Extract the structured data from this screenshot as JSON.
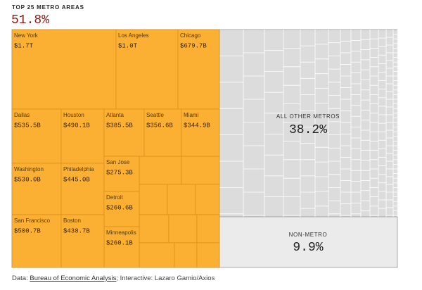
{
  "chart_data": {
    "type": "treemap",
    "group_names": [
      "TOP 25 METRO AREAS",
      "ALL OTHER METROS",
      "NON-METRO"
    ],
    "group_values": [
      51.8,
      38.2,
      9.9
    ],
    "group_value_labels": [
      "51.8%",
      "38.2%",
      "9.9%"
    ],
    "group_colors": [
      "#fbb034",
      "#dcdcdc",
      "#ebebeb"
    ],
    "categories": [
      "New York",
      "Los Angeles",
      "Chicago",
      "Dallas",
      "Houston",
      "Atlanta",
      "Seattle",
      "Miami",
      "Washington",
      "Philadelphia",
      "San Jose",
      "Detroit",
      "Minneapolis",
      "San Francisco",
      "Boston"
    ],
    "values": [
      1700000000000,
      1000000000000,
      679700000000,
      535500000000,
      490100000000,
      385500000000,
      356600000000,
      344900000000,
      530000000000,
      445000000000,
      275300000000,
      260600000000,
      260100000000,
      500700000000,
      438700000000
    ],
    "value_labels": [
      "$1.7T",
      "$1.0T",
      "$679.7B",
      "$535.5B",
      "$490.1B",
      "$385.5B",
      "$356.6B",
      "$344.9B",
      "$530.0B",
      "$445.0B",
      "$275.3B",
      "$260.6B",
      "$260.1B",
      "$500.7B",
      "$438.7B"
    ],
    "source_prefix": "Data:",
    "source_link": "Bureau of Economic Analysis",
    "source_suffix": "; Interactive: Lazaro Gamio/Axios"
  }
}
